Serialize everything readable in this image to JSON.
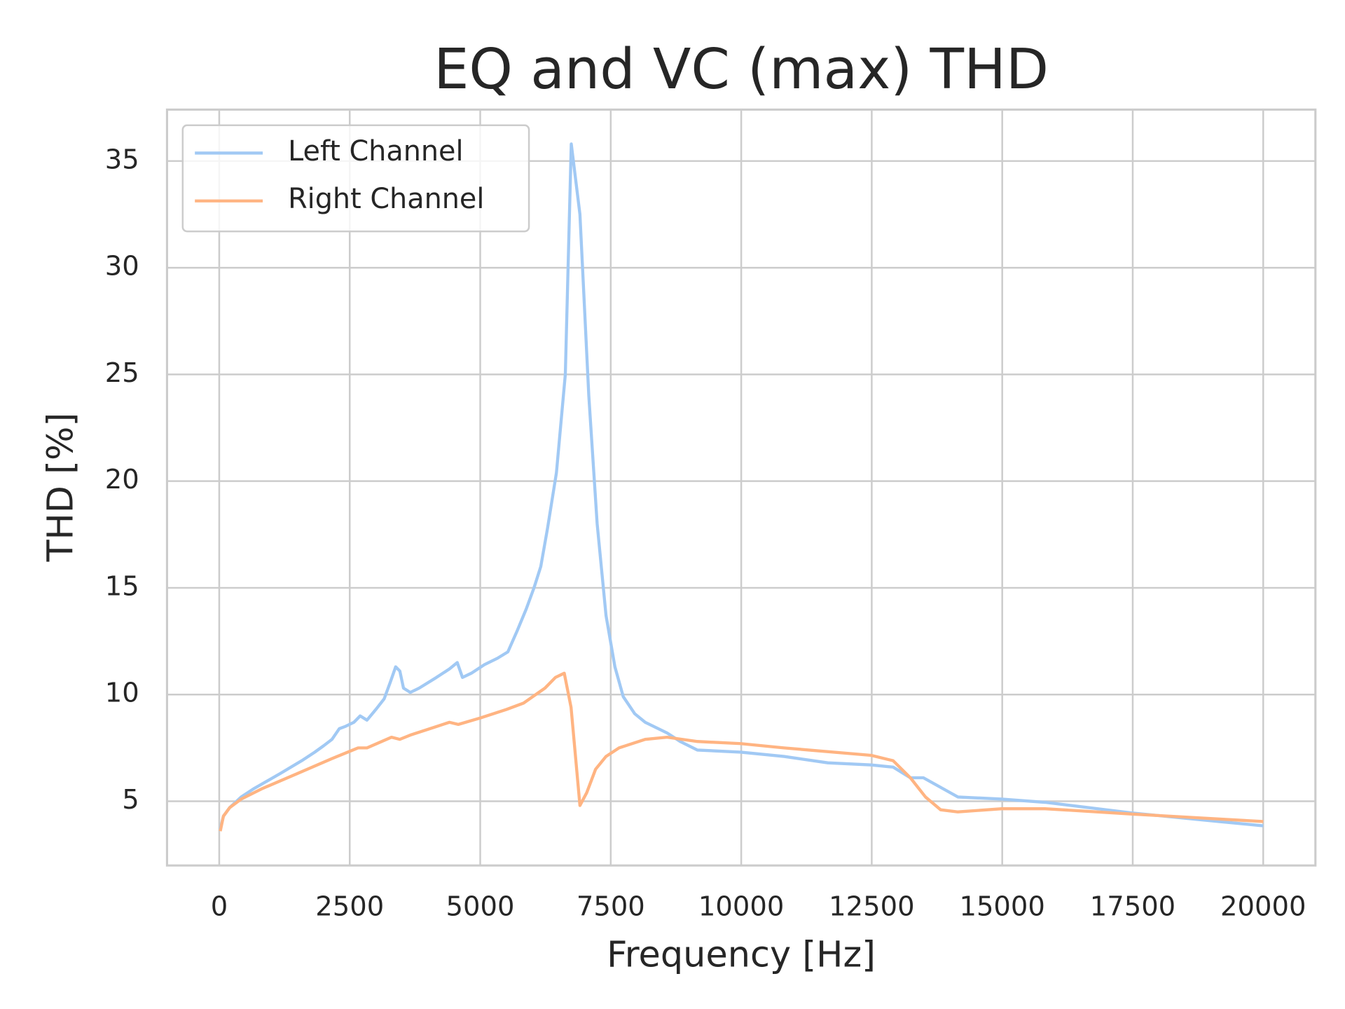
{
  "chart_data": {
    "type": "line",
    "title": "EQ and VC (max) THD",
    "x_label": "Frequency [Hz]",
    "y_label": "THD [%]",
    "xlim": [
      -1000,
      21000
    ],
    "ylim": [
      1.99,
      37.41
    ],
    "xticks": [
      0,
      2500,
      5000,
      7500,
      10000,
      12500,
      15000,
      17500,
      20000
    ],
    "yticks": [
      5,
      10,
      15,
      20,
      25,
      30,
      35
    ],
    "grid": true,
    "legend_position": "upper-left",
    "series": [
      {
        "name": "Left Channel",
        "color": "#a1c9f4",
        "x": [
          20,
          80,
          200,
          420,
          670,
          1170,
          1580,
          1830,
          2000,
          2160,
          2300,
          2410,
          2580,
          2700,
          2830,
          3000,
          3160,
          3280,
          3380,
          3460,
          3530,
          3660,
          3830,
          4160,
          4410,
          4560,
          4660,
          4830,
          5080,
          5330,
          5530,
          5710,
          5880,
          6030,
          6160,
          6290,
          6460,
          6630,
          6744,
          6910,
          7080,
          7240,
          7410,
          7580,
          7740,
          7960,
          8160,
          8580,
          8830,
          9160,
          9990,
          10820,
          11660,
          12490,
          12910,
          13240,
          13490,
          14150,
          14990,
          15820,
          17490,
          19150,
          20000
        ],
        "values": [
          3.7,
          4.3,
          4.7,
          5.2,
          5.6,
          6.3,
          6.9,
          7.3,
          7.6,
          7.9,
          8.4,
          8.5,
          8.7,
          9.0,
          8.8,
          9.3,
          9.8,
          10.6,
          11.3,
          11.1,
          10.3,
          10.1,
          10.3,
          10.8,
          11.2,
          11.5,
          10.8,
          11.0,
          11.4,
          11.7,
          12.0,
          13.0,
          14.0,
          15.0,
          16.0,
          17.8,
          20.4,
          25.0,
          35.8,
          32.5,
          24.0,
          18.0,
          13.7,
          11.3,
          9.9,
          9.1,
          8.7,
          8.2,
          7.8,
          7.4,
          7.3,
          7.1,
          6.8,
          6.7,
          6.6,
          6.1,
          6.1,
          5.2,
          5.1,
          4.95,
          4.45,
          4.05,
          3.85
        ]
      },
      {
        "name": "Right Channel",
        "color": "#ffb482",
        "x": [
          20,
          80,
          200,
          420,
          830,
          1500,
          2160,
          2660,
          2830,
          3300,
          3460,
          3660,
          4160,
          4410,
          4580,
          5000,
          5500,
          5830,
          6240,
          6440,
          6610,
          6740,
          6910,
          7040,
          7210,
          7410,
          7660,
          8160,
          8580,
          9160,
          9990,
          10820,
          12490,
          12910,
          13240,
          13530,
          13820,
          14150,
          14990,
          15820,
          17490,
          20000
        ],
        "values": [
          3.6,
          4.3,
          4.7,
          5.1,
          5.6,
          6.3,
          7.0,
          7.5,
          7.5,
          8.0,
          7.9,
          8.1,
          8.5,
          8.7,
          8.6,
          8.9,
          9.3,
          9.6,
          10.3,
          10.8,
          11.0,
          9.4,
          4.8,
          5.4,
          6.5,
          7.1,
          7.5,
          7.9,
          8.0,
          7.8,
          7.7,
          7.5,
          7.15,
          6.9,
          6.1,
          5.2,
          4.6,
          4.5,
          4.65,
          4.65,
          4.4,
          4.05
        ]
      }
    ]
  }
}
